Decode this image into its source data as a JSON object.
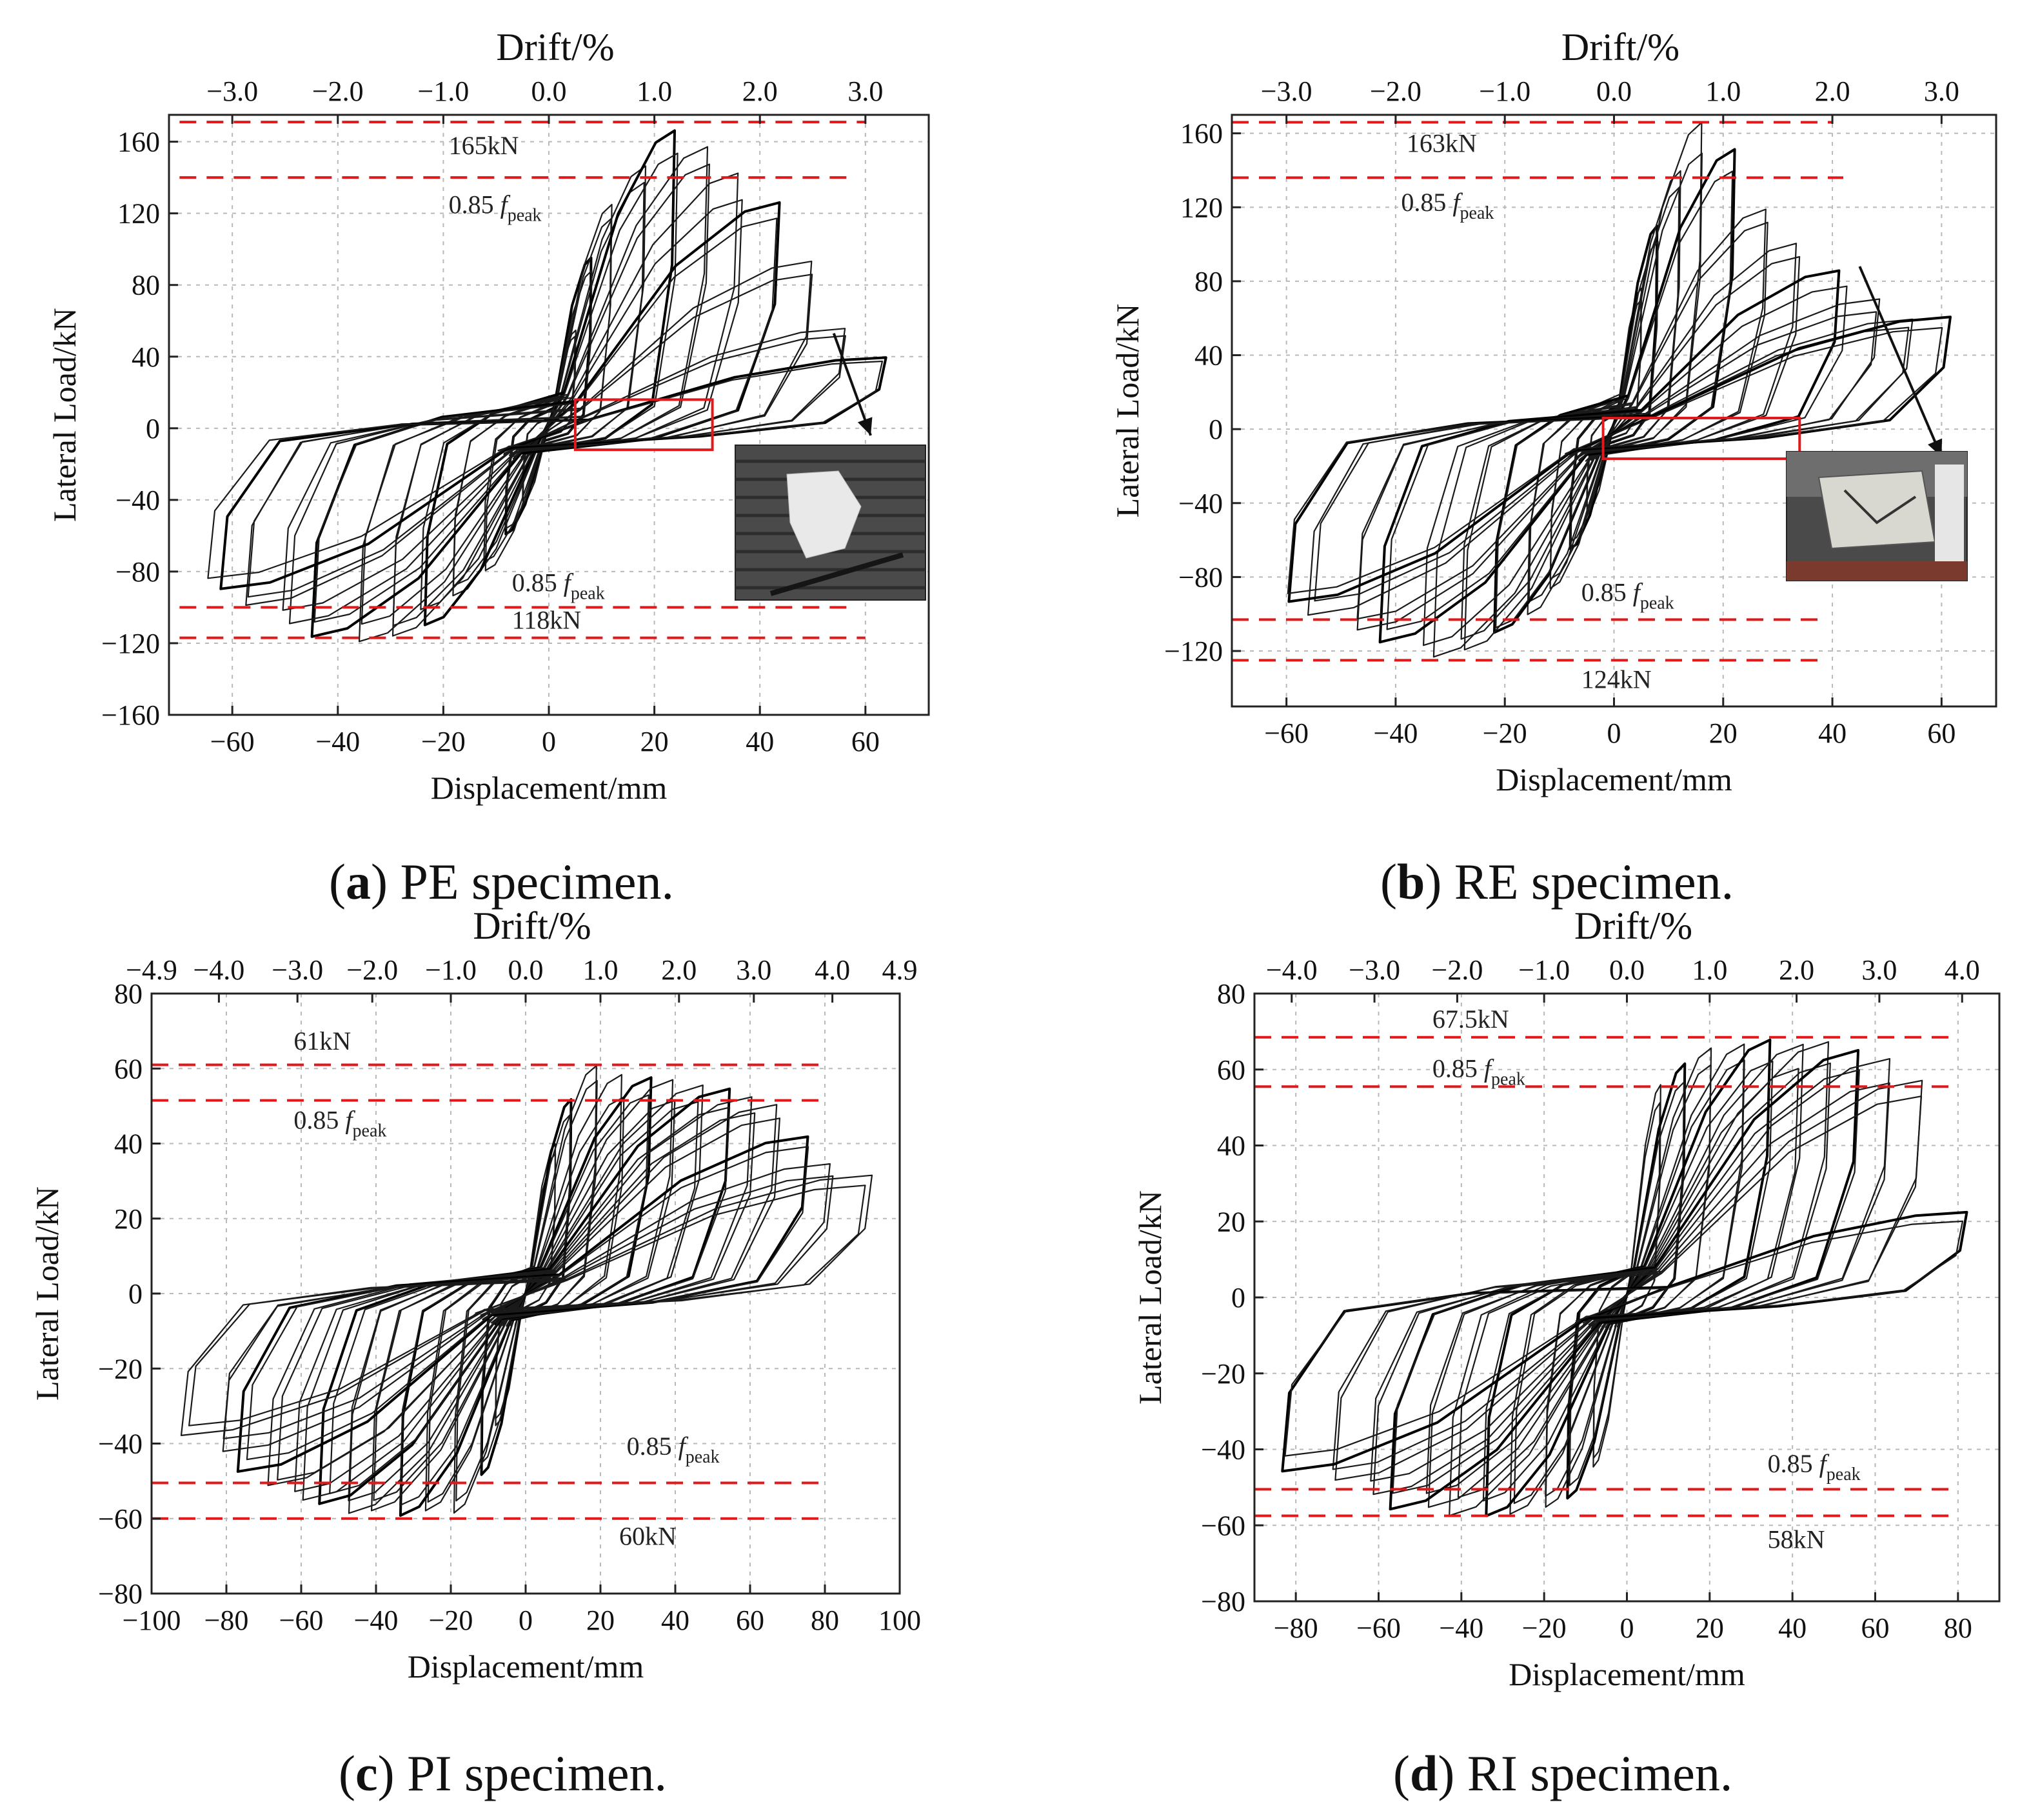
{
  "chart_data": [
    {
      "id": "a",
      "type": "line",
      "caption_letter": "a",
      "caption_text": "PE specimen.",
      "xlabel": "Displacement/mm",
      "ylabel": "Lateral Load/kN",
      "top_xlabel": "Drift/%",
      "xlim": [
        -72,
        72
      ],
      "ylim": [
        -160,
        175
      ],
      "xticks": [
        -60,
        -40,
        -20,
        0,
        20,
        40,
        60
      ],
      "yticks": [
        -160,
        -120,
        -80,
        -40,
        0,
        40,
        80,
        120,
        160
      ],
      "top_ticks": [
        {
          "x": -60,
          "label": "-3.0"
        },
        {
          "x": -40,
          "label": "-2.0"
        },
        {
          "x": -20,
          "label": "-1.0"
        },
        {
          "x": 0,
          "label": "0.0"
        },
        {
          "x": 20,
          "label": "1.0"
        },
        {
          "x": 40,
          "label": "2.0"
        },
        {
          "x": 60,
          "label": "3.0"
        }
      ],
      "grid": true,
      "ref_lines": [
        {
          "y": 171,
          "x0": -70,
          "x1": 60,
          "label": "165kN"
        },
        {
          "y": 140,
          "x0": -70,
          "x1": 58,
          "label": "0.85",
          "label_f": "f",
          "label_sub": "peak"
        },
        {
          "y": -100,
          "x0": -70,
          "x1": 58,
          "label": "0.85",
          "label_f": "f",
          "label_sub": "peak"
        },
        {
          "y": -117,
          "x0": -70,
          "x1": 60,
          "label": "118kN"
        }
      ],
      "annotations": [
        {
          "text": "165kN",
          "x": -19,
          "y": 153
        },
        {
          "text": "0.85",
          "f": "f",
          "sub": "peak",
          "x": -19,
          "y": 120
        },
        {
          "text": "0.85",
          "f": "f",
          "sub": "peak",
          "x": -7,
          "y": -91
        },
        {
          "text": "118kN",
          "x": -7,
          "y": -112
        }
      ],
      "highlight_box": {
        "x0": 5,
        "x1": 31,
        "y0": -12,
        "y1": 16
      },
      "inset_photo": true,
      "arrow": {
        "from": [
          54,
          53
        ],
        "to": [
          61,
          -4
        ]
      },
      "peak_pos": 165,
      "peak_neg": -118,
      "max_disp_pos": 63,
      "max_disp_neg": -65,
      "cycles": [
        {
          "d": 5,
          "fp": 55,
          "fn": -42
        },
        {
          "d": 8,
          "fp": 95,
          "fn": -60
        },
        {
          "d": 12,
          "fp": 125,
          "fn": -78
        },
        {
          "d": 18,
          "fp": 148,
          "fn": -95
        },
        {
          "d": 24,
          "fp": 165,
          "fn": -108
        },
        {
          "d": 30,
          "fp": 160,
          "fn": -115
        },
        {
          "d": 36,
          "fp": 140,
          "fn": -117
        },
        {
          "d": 44,
          "fp": 128,
          "fn": -116
        },
        {
          "d": 50,
          "fp": 95,
          "fn": -108
        },
        {
          "d": 56,
          "fp": 55,
          "fn": -100
        },
        {
          "d": 63,
          "fp": 40,
          "fn": -90
        }
      ]
    },
    {
      "id": "b",
      "type": "line",
      "caption_letter": "b",
      "caption_text": "RE specimen.",
      "xlabel": "Displacement/mm",
      "ylabel": "Lateral Load/kN",
      "top_xlabel": "Drift/%",
      "xlim": [
        -70,
        70
      ],
      "ylim": [
        -150,
        170
      ],
      "xticks": [
        -60,
        -40,
        -20,
        0,
        20,
        40,
        60
      ],
      "yticks": [
        -120,
        -80,
        -40,
        0,
        40,
        80,
        120,
        160
      ],
      "top_ticks": [
        {
          "x": -60,
          "label": "-3.0"
        },
        {
          "x": -40,
          "label": "-2.0"
        },
        {
          "x": -20,
          "label": "-1.0"
        },
        {
          "x": 0,
          "label": "0.0"
        },
        {
          "x": 20,
          "label": "1.0"
        },
        {
          "x": 40,
          "label": "2.0"
        },
        {
          "x": 60,
          "label": "3.0"
        }
      ],
      "grid": true,
      "ref_lines": [
        {
          "y": 166,
          "x0": -70,
          "x1": 40,
          "label": "163kN"
        },
        {
          "y": 136,
          "x0": -70,
          "x1": 42,
          "label": "0.85",
          "label_f": "f",
          "label_sub": "peak"
        },
        {
          "y": -103,
          "x0": -70,
          "x1": 38,
          "label": "0.85",
          "label_f": "f",
          "label_sub": "peak"
        },
        {
          "y": -125,
          "x0": -70,
          "x1": 38,
          "label": "124kN"
        }
      ],
      "annotations": [
        {
          "text": "163kN",
          "x": -38,
          "y": 150
        },
        {
          "text": "0.85",
          "f": "f",
          "sub": "peak",
          "x": -39,
          "y": 118
        },
        {
          "text": "0.85",
          "f": "f",
          "sub": "peak",
          "x": -6,
          "y": -93
        },
        {
          "text": "124kN",
          "x": -6,
          "y": -140
        }
      ],
      "highlight_box": {
        "x0": -2,
        "x1": 34,
        "y0": -16,
        "y1": 6
      },
      "inset_photo": true,
      "arrow": {
        "from": [
          45,
          88
        ],
        "to": [
          60,
          -15
        ]
      },
      "peak_pos": 163,
      "peak_neg": -124,
      "max_disp_pos": 61,
      "max_disp_neg": -65,
      "cycles": [
        {
          "d": 5,
          "fp": 75,
          "fn": -45
        },
        {
          "d": 8,
          "fp": 110,
          "fn": -65
        },
        {
          "d": 12,
          "fp": 140,
          "fn": -85
        },
        {
          "d": 16,
          "fp": 163,
          "fn": -100
        },
        {
          "d": 22,
          "fp": 150,
          "fn": -112
        },
        {
          "d": 28,
          "fp": 120,
          "fn": -120
        },
        {
          "d": 34,
          "fp": 100,
          "fn": -124
        },
        {
          "d": 42,
          "fp": 85,
          "fn": -116
        },
        {
          "d": 48,
          "fp": 70,
          "fn": -108
        },
        {
          "d": 55,
          "fp": 60,
          "fn": -100
        },
        {
          "d": 61,
          "fp": 60,
          "fn": -93
        }
      ]
    },
    {
      "id": "c",
      "type": "line",
      "caption_letter": "c",
      "caption_text": "PI specimen.",
      "xlabel": "Displacement/mm",
      "ylabel": "Lateral Load/kN",
      "top_xlabel": "Drift/%",
      "xlim": [
        -100,
        100
      ],
      "ylim": [
        -80,
        80
      ],
      "xticks": [
        -100,
        -80,
        -60,
        -40,
        -20,
        0,
        20,
        40,
        60,
        80,
        100
      ],
      "yticks": [
        -80,
        -60,
        -40,
        -20,
        0,
        20,
        40,
        60,
        80
      ],
      "top_ticks": [
        {
          "x": -100,
          "label": "-4.9"
        },
        {
          "x": -82,
          "label": "-4.0"
        },
        {
          "x": -61,
          "label": "-3.0"
        },
        {
          "x": -41,
          "label": "-2.0"
        },
        {
          "x": -20,
          "label": "-1.0"
        },
        {
          "x": 0,
          "label": "0.0"
        },
        {
          "x": 20,
          "label": "1.0"
        },
        {
          "x": 41,
          "label": "2.0"
        },
        {
          "x": 61,
          "label": "3.0"
        },
        {
          "x": 82,
          "label": "4.0"
        },
        {
          "x": 100,
          "label": "4.9"
        }
      ],
      "grid": true,
      "ref_lines": [
        {
          "y": 61,
          "x0": -100,
          "x1": 80,
          "label": "61kN"
        },
        {
          "y": 51.5,
          "x0": -100,
          "x1": 80,
          "label": "0.85",
          "label_f": "f",
          "label_sub": "peak"
        },
        {
          "y": -50.5,
          "x0": -100,
          "x1": 80,
          "label": "0.85",
          "label_f": "f",
          "label_sub": "peak"
        },
        {
          "y": -60,
          "x0": -100,
          "x1": 80,
          "label": "60kN"
        }
      ],
      "annotations": [
        {
          "text": "61kN",
          "x": -62,
          "y": 65
        },
        {
          "text": "0.85",
          "f": "f",
          "sub": "peak",
          "x": -62,
          "y": 44
        },
        {
          "text": "0.85",
          "f": "f",
          "sub": "peak",
          "x": 27,
          "y": -43
        },
        {
          "text": "60kN",
          "x": 25,
          "y": -67
        }
      ],
      "peak_pos": 61,
      "peak_neg": -60,
      "max_disp_pos": 91,
      "max_disp_neg": -92,
      "cycles": [
        {
          "d": 8,
          "fp": 40,
          "fn": -35
        },
        {
          "d": 12,
          "fp": 52,
          "fn": -48
        },
        {
          "d": 19,
          "fp": 61,
          "fn": -58
        },
        {
          "d": 26,
          "fp": 58,
          "fn": -59
        },
        {
          "d": 33,
          "fp": 57,
          "fn": -60
        },
        {
          "d": 40,
          "fp": 57,
          "fn": -59
        },
        {
          "d": 47,
          "fp": 56,
          "fn": -58
        },
        {
          "d": 54,
          "fp": 55,
          "fn": -57
        },
        {
          "d": 61,
          "fp": 53,
          "fn": -55
        },
        {
          "d": 68,
          "fp": 50,
          "fn": -52
        },
        {
          "d": 75,
          "fp": 42,
          "fn": -47
        },
        {
          "d": 82,
          "fp": 34,
          "fn": -42
        },
        {
          "d": 91,
          "fp": 32,
          "fn": -38
        }
      ]
    },
    {
      "id": "d",
      "type": "line",
      "caption_letter": "d",
      "caption_text": "RI specimen.",
      "xlabel": "Displacement/mm",
      "ylabel": "Lateral Load/kN",
      "top_xlabel": "Drift/%",
      "xlim": [
        -90,
        90
      ],
      "ylim": [
        -80,
        80
      ],
      "xticks": [
        -80,
        -60,
        -40,
        -20,
        0,
        20,
        40,
        60,
        80
      ],
      "yticks": [
        -80,
        -60,
        -40,
        -20,
        0,
        20,
        40,
        60,
        80
      ],
      "top_ticks": [
        {
          "x": -81,
          "label": "-4.0"
        },
        {
          "x": -61,
          "label": "-3.0"
        },
        {
          "x": -41,
          "label": "-2.0"
        },
        {
          "x": -20,
          "label": "-1.0"
        },
        {
          "x": 0,
          "label": "0.0"
        },
        {
          "x": 20,
          "label": "1.0"
        },
        {
          "x": 41,
          "label": "2.0"
        },
        {
          "x": 61,
          "label": "3.0"
        },
        {
          "x": 81,
          "label": "4.0"
        }
      ],
      "grid": true,
      "ref_lines": [
        {
          "y": 68.5,
          "x0": -90,
          "x1": 80,
          "label": "67.5kN"
        },
        {
          "y": 55.5,
          "x0": -90,
          "x1": 80,
          "label": "0.85",
          "label_f": "f",
          "label_sub": "peak"
        },
        {
          "y": -50.5,
          "x0": -90,
          "x1": 80,
          "label": "0.85",
          "label_f": "f",
          "label_sub": "peak"
        },
        {
          "y": -57.5,
          "x0": -90,
          "x1": 80,
          "label": "58kN"
        }
      ],
      "annotations": [
        {
          "text": "67.5kN",
          "x": -47,
          "y": 71
        },
        {
          "text": "0.85",
          "f": "f",
          "sub": "peak",
          "x": -47,
          "y": 58
        },
        {
          "text": "0.85",
          "f": "f",
          "sub": "peak",
          "x": 34,
          "y": -46
        },
        {
          "text": "58kN",
          "x": 34,
          "y": -66
        }
      ],
      "peak_pos": 67.5,
      "peak_neg": -58,
      "max_disp_pos": 82,
      "max_disp_neg": -82,
      "cycles": [
        {
          "d": 8,
          "fp": 55,
          "fn": -45
        },
        {
          "d": 14,
          "fp": 62,
          "fn": -52
        },
        {
          "d": 20,
          "fp": 66,
          "fn": -55
        },
        {
          "d": 28,
          "fp": 67,
          "fn": -57
        },
        {
          "d": 35,
          "fp": 67,
          "fn": -58
        },
        {
          "d": 42,
          "fp": 66,
          "fn": -57
        },
        {
          "d": 49,
          "fp": 66,
          "fn": -56
        },
        {
          "d": 56,
          "fp": 64,
          "fn": -55
        },
        {
          "d": 63,
          "fp": 62,
          "fn": -52
        },
        {
          "d": 70,
          "fp": 58,
          "fn": -48
        },
        {
          "d": 82,
          "fp": 22,
          "fn": -45
        }
      ]
    }
  ]
}
